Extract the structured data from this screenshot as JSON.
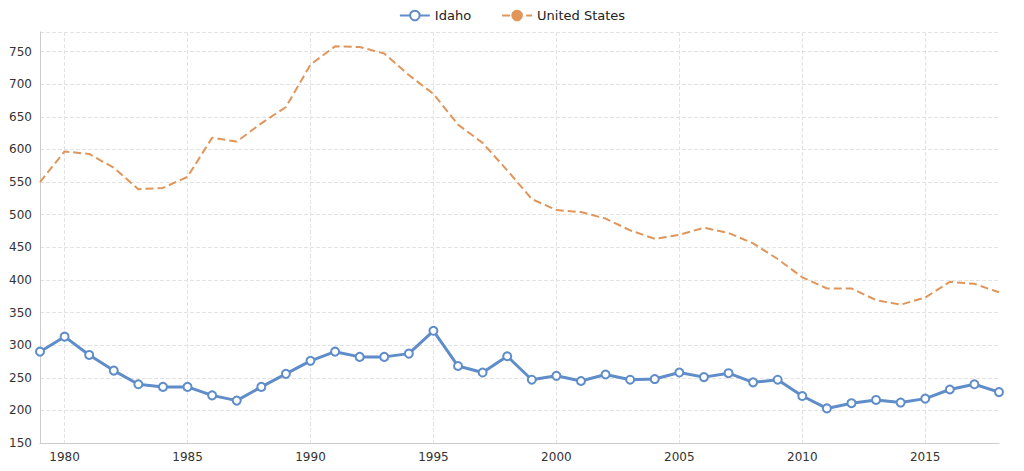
{
  "chart_data": {
    "type": "line",
    "x": [
      1979,
      1980,
      1981,
      1982,
      1983,
      1984,
      1985,
      1986,
      1987,
      1988,
      1989,
      1990,
      1991,
      1992,
      1993,
      1994,
      1995,
      1996,
      1997,
      1998,
      1999,
      2000,
      2001,
      2002,
      2003,
      2004,
      2005,
      2006,
      2007,
      2008,
      2009,
      2010,
      2011,
      2012,
      2013,
      2014,
      2015,
      2016,
      2017,
      2018
    ],
    "series": [
      {
        "name": "Idaho",
        "color": "#5f8dc9",
        "marker": "circle",
        "line_style": "solid",
        "values": [
          290,
          313,
          285,
          261,
          240,
          236,
          236,
          223,
          215,
          236,
          256,
          276,
          290,
          282,
          282,
          287,
          322,
          268,
          258,
          283,
          247,
          253,
          245,
          255,
          247,
          248,
          258,
          251,
          257,
          243,
          247,
          222,
          203,
          211,
          216,
          212,
          218,
          232,
          240,
          228
        ]
      },
      {
        "name": "United States",
        "color": "#e0955a",
        "marker": "none",
        "line_style": "dashed",
        "values": [
          550,
          597,
          593,
          572,
          539,
          541,
          558,
          618,
          612,
          640,
          665,
          730,
          758,
          757,
          747,
          714,
          685,
          638,
          610,
          568,
          524,
          507,
          504,
          494,
          476,
          463,
          469,
          480,
          472,
          456,
          432,
          404,
          387,
          387,
          369,
          362,
          373,
          397,
          394,
          381
        ]
      }
    ],
    "xlim": [
      1979,
      2018
    ],
    "xticks": [
      1980,
      1985,
      1990,
      1995,
      2000,
      2005,
      2010,
      2015
    ],
    "ylim": [
      150,
      780
    ],
    "yticks": [
      150,
      200,
      250,
      300,
      350,
      400,
      450,
      500,
      550,
      600,
      650,
      700,
      750
    ],
    "grid": true,
    "legend": "top"
  }
}
